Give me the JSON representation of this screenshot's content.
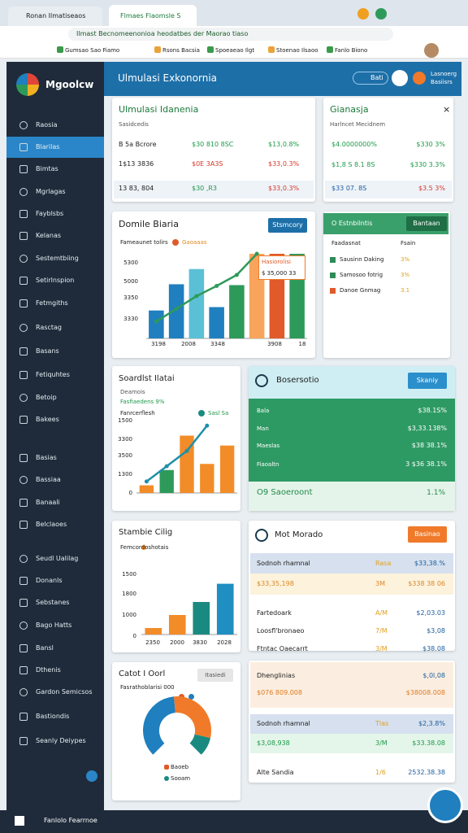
{
  "browser": {
    "tabs": [
      "Ronan Ilmatiseaos",
      "Flmaes Flaomsle S"
    ],
    "address": "Ilmast Becnomeenonioa heodatbes der Maorao tiaso",
    "bookmarks": [
      "Gumsao Sao Fiamo",
      "Rsons Bacsia",
      "Spoeaeao Ilgt",
      "Stoenao Ilsaoo",
      "Fanlo Biono"
    ]
  },
  "sidebar": {
    "brand": "Mgoolcw",
    "items": [
      "Raosia",
      "Blarilas",
      "Bimtas",
      "Mgrlagas",
      "Fayblsbs",
      "Kelanas",
      "Sestemtbiing",
      "Setirlnspion",
      "Fetmgiths",
      "Rasctag",
      "Basans",
      "Fetiquhtes",
      "Betoip",
      "Bakees",
      "Basias",
      "Bassiaa",
      "Banaali",
      "Belclaoes",
      "Seudl Ualilag",
      "Donanls",
      "Sebstanes",
      "Bago Hatts",
      "Bansl",
      "Dthenis",
      "Gardon Semicsos",
      "Bastiondis",
      "Seanly Deiypes"
    ]
  },
  "header": {
    "title": "Ulmulasi Exkonornia",
    "button": "Bati",
    "user": [
      "Lasnoerg",
      "Basiisrs"
    ]
  },
  "summary": {
    "title": "Ulmulasi Idanenia",
    "subtitle": "Sasidcedis",
    "rows": [
      [
        "B 5a Bcrore",
        "$30 810 8SC",
        "$13,0.8%"
      ],
      [
        "1$13 3836",
        "$0E 3A3S",
        "$33,0.3%"
      ],
      [
        "13 83, 804",
        "$30 ,R3",
        "$33,0.3%"
      ]
    ]
  },
  "balance": {
    "title": "Gianasja",
    "close": "×",
    "subtitle": "Harlncet Mecidnem",
    "rows": [
      [
        "$4.0000000%",
        "$330 3%"
      ],
      [
        "$1,8 S 8.1 8S",
        "$330 3.3%"
      ],
      [
        "$33 07. 8S",
        "$3.5 3%"
      ]
    ]
  },
  "chart1": {
    "title": "Domile Biaria",
    "button": "Stsmcory",
    "legend": [
      "Fameaunet tolirs",
      "Gaoaaas"
    ],
    "y_labels": [
      "5300",
      "5000",
      "3350",
      "3330"
    ],
    "x_labels": [
      "3198",
      "2008",
      "3348",
      "3908",
      "18"
    ],
    "callout": [
      "Hasiorolisi",
      "$ 35,000 33"
    ],
    "ylim": [
      0,
      100
    ],
    "values": [
      33,
      64,
      82,
      37,
      63,
      100,
      100,
      100
    ],
    "colors": [
      "#1f7fbf",
      "#1f7fbf",
      "#5bc0d6",
      "#1f7fbf",
      "#2e9a5a",
      "#f9a45c",
      "#e05a2a",
      "#2e9a5a"
    ],
    "line": [
      20,
      35,
      50,
      62,
      75,
      100
    ],
    "line_color": "#2e9a5a"
  },
  "estimates": {
    "title": "O Estnbilntis",
    "button": "Bantaan",
    "columns": [
      "Faadasnat",
      "Fsain"
    ],
    "rows": [
      [
        "Sausinn Daking",
        "3%"
      ],
      [
        "Samosoo fotrig",
        "3%"
      ],
      [
        "Danoe Gnmag",
        "3.1"
      ]
    ],
    "colors": [
      "#2e8b57",
      "#2e8b57",
      "#e05a2a"
    ]
  },
  "chart2": {
    "title": "Soardlst Ilatai",
    "subtitle": "Deamois",
    "highlight": "Fasfiaedens 9%",
    "legend": [
      "Fanrcerflesh",
      "Sasl Sa"
    ],
    "y_labels": [
      "1500",
      "3300",
      "3500",
      "1300",
      "0"
    ],
    "ylim": [
      0,
      100
    ],
    "values": [
      10,
      30,
      75,
      38,
      62
    ],
    "colors": [
      "#f28c28",
      "#2e9a5a",
      "#f28c28",
      "#f28c28",
      "#f28c28"
    ],
    "line": [
      15,
      35,
      55,
      88
    ],
    "line_color": "#1f8fa8"
  },
  "positions": {
    "title": "Bosersotio",
    "button": "Skaniy",
    "rows": [
      [
        "Bala",
        "$38.1S%"
      ],
      [
        "Man",
        "$3,33.138%"
      ],
      [
        "Maeslas",
        "$38 38.1%"
      ],
      [
        "Fiaoaltn",
        "3   $36 38.1%"
      ]
    ],
    "footer": [
      "O9 Saoeroont",
      "1.1%"
    ]
  },
  "chart3": {
    "title": "Stambie Cilig",
    "legend": "Femcordoshotais",
    "y_labels": [
      "1500",
      "1800",
      "1000",
      "0"
    ],
    "x_labels": [
      "2350",
      "2000",
      "3830",
      "2028"
    ],
    "ylim": [
      0,
      100
    ],
    "values": [
      10,
      30,
      50,
      78
    ],
    "colors": [
      "#f28c28",
      "#f28c28",
      "#1a8a80",
      "#1f8fc2"
    ]
  },
  "market": {
    "title": "Mot Morado",
    "button": "Basinao",
    "rows": [
      [
        "Sodnoh rhamnal",
        "Rasa",
        "$33,38.%"
      ],
      [
        "$33,35,198",
        "3M",
        "$338 38 06"
      ],
      [
        "Fartedoark",
        "A/M",
        "$2,03.03"
      ],
      [
        "Loosfl'bronaeo",
        "7/M",
        "$3,08"
      ],
      [
        "Ftntac Oaecarrt",
        "3/M",
        "$38.08"
      ]
    ],
    "rows2": [
      [
        "Dhenglinias",
        "",
        "$,0l,08"
      ],
      [
        "$076 809.008",
        "",
        "$38008.008"
      ],
      [
        "Sodnoh rhamnal",
        "Tlas",
        "$2,3.8%"
      ],
      [
        "$3,08,938",
        "3/M",
        "$33.38.08"
      ],
      [
        "Alte Sandia",
        "1/6",
        "2532.38.38"
      ]
    ]
  },
  "donut": {
    "title": "Catot I Oorl",
    "button": "Itasiedi",
    "subtitle": "Fasrathoblarisi 000",
    "legend": [
      "Baoeb",
      "Sooam"
    ],
    "values": [
      48,
      40,
      12
    ],
    "colors": [
      "#1f7fbf",
      "#f07a2a",
      "#1a8a80"
    ]
  },
  "taskbar": {
    "search": "Fanlolo Fearrnoe"
  }
}
